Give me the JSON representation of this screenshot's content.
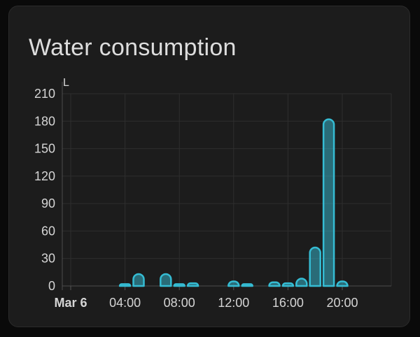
{
  "card": {
    "title": "Water consumption"
  },
  "chart_data": {
    "type": "bar",
    "title": "Water consumption",
    "unit": "L",
    "ylabel": "L",
    "xlabel": "",
    "ylim": [
      0,
      210
    ],
    "y_ticks": [
      0,
      30,
      60,
      90,
      120,
      150,
      180,
      210
    ],
    "x_ticks": [
      {
        "hour": 0,
        "label": "Mar 6",
        "bold": true
      },
      {
        "hour": 4,
        "label": "04:00",
        "bold": false
      },
      {
        "hour": 8,
        "label": "08:00",
        "bold": false
      },
      {
        "hour": 12,
        "label": "12:00",
        "bold": false
      },
      {
        "hour": 16,
        "label": "16:00",
        "bold": false
      },
      {
        "hour": 20,
        "label": "20:00",
        "bold": false
      }
    ],
    "x_range_hours": [
      0,
      23.6
    ],
    "grid": true,
    "legend": false,
    "bars": [
      {
        "time": "04:00",
        "hour": 4,
        "value": 2
      },
      {
        "time": "05:00",
        "hour": 5,
        "value": 13
      },
      {
        "time": "07:00",
        "hour": 7,
        "value": 13
      },
      {
        "time": "08:00",
        "hour": 8,
        "value": 2
      },
      {
        "time": "09:00",
        "hour": 9,
        "value": 3
      },
      {
        "time": "12:00",
        "hour": 12,
        "value": 5
      },
      {
        "time": "13:00",
        "hour": 13,
        "value": 2
      },
      {
        "time": "15:00",
        "hour": 15,
        "value": 4
      },
      {
        "time": "16:00",
        "hour": 16,
        "value": 3
      },
      {
        "time": "17:00",
        "hour": 17,
        "value": 8
      },
      {
        "time": "18:00",
        "hour": 18,
        "value": 42
      },
      {
        "time": "19:00",
        "hour": 19,
        "value": 182
      },
      {
        "time": "20:00",
        "hour": 20,
        "value": 5
      }
    ],
    "colors": {
      "bar_stroke": "#35bcd3",
      "bar_fill_rgba": "rgba(53,188,211,0.5)",
      "grid": "#2e2e2e",
      "axis": "#4d4d4d",
      "tick": "#555555",
      "label": "#d5d5d5",
      "title": "#dddddd",
      "card_bg": "#1c1c1c",
      "card_border": "#2b2b2b",
      "page_bg": "#0a0a0a"
    }
  }
}
